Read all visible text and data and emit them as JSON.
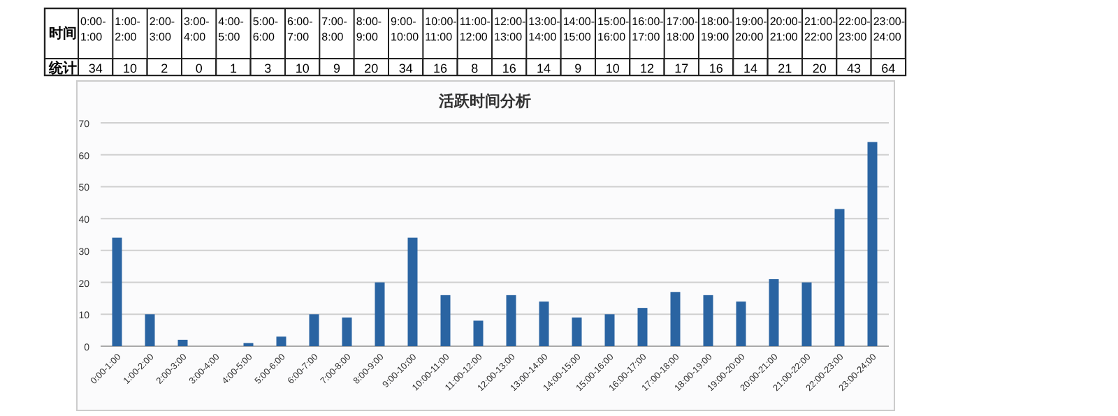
{
  "chart_data": [
    {
      "type": "heatmap",
      "y_categories": [
        "统计"
      ],
      "data_labels": true,
      "categories": [
        "0:00-1:00",
        "1:00-2:00",
        "2:00-3:00",
        "3:00-4:00",
        "4:00-5:00",
        "5:00-6:00",
        "6:00-7:00",
        "7:00-8:00",
        "8:00-9:00",
        "9:00-10:00",
        "10:00-11:00",
        "11:00-12:00",
        "12:00-13:00",
        "13:00-14:00",
        "14:00-15:00",
        "15:00-16:00",
        "16:00-17:00",
        "17:00-18:00",
        "18:00-19:00",
        "19:00-20:00",
        "20:00-21:00",
        "21:00-22:00",
        "22:00-23:00",
        "23:00-24:00"
      ],
      "cells": [
        [
          34,
          10,
          2,
          0,
          1,
          3,
          10,
          9,
          20,
          34,
          16,
          8,
          16,
          14,
          9,
          10,
          12,
          17,
          16,
          14,
          21,
          20,
          43,
          64
        ]
      ],
      "annotations": [
        "时间"
      ]
    },
    {
      "type": "bar",
      "title": "活跃时间分析",
      "categories": [
        "0:00-1:00",
        "1:00-2:00",
        "2:00-3:00",
        "3:00-4:00",
        "4:00-5:00",
        "5:00-6:00",
        "6:00-7:00",
        "7:00-8:00",
        "8:00-9:00",
        "9:00-10:00",
        "10:00-11:00",
        "11:00-12:00",
        "12:00-13:00",
        "13:00-14:00",
        "14:00-15:00",
        "15:00-16:00",
        "16:00-17:00",
        "17:00-18:00",
        "18:00-19:00",
        "19:00-20:00",
        "20:00-21:00",
        "21:00-22:00",
        "22:00-23:00",
        "23:00-24:00"
      ],
      "values": [
        34,
        10,
        2,
        0,
        1,
        3,
        10,
        9,
        20,
        34,
        16,
        8,
        16,
        14,
        9,
        10,
        12,
        17,
        16,
        14,
        21,
        20,
        43,
        64
      ],
      "color": "#2a64a2",
      "ylim": [
        0,
        70
      ],
      "yticks": [
        0,
        10,
        20,
        30,
        40,
        50,
        60,
        70
      ],
      "grid": "y"
    }
  ]
}
